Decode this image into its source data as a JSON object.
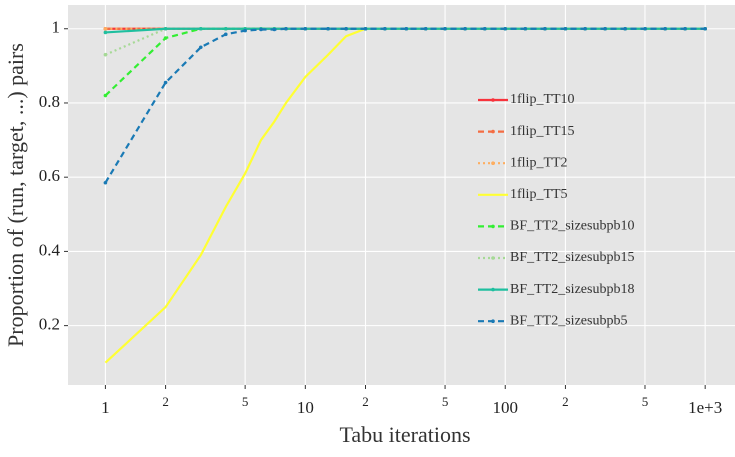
{
  "chart_data": {
    "type": "line",
    "xlabel": "Tabu iterations",
    "ylabel": "Proportion of (run, target, ...) pairs",
    "xscale": "log",
    "xlim": [
      0.65,
      1410
    ],
    "ylim": [
      0.04,
      1.064
    ],
    "xticks": [
      1,
      2,
      5,
      10,
      {
        "value": 20,
        "label": "2"
      },
      {
        "value": 50,
        "label": "5"
      },
      100,
      {
        "value": 200,
        "label": "2"
      },
      {
        "value": 500,
        "label": "5"
      },
      {
        "value": 1000,
        "label": "1e+3"
      }
    ],
    "yticks": [
      0.2,
      0.4,
      0.6,
      0.8,
      1
    ],
    "grid": true,
    "legend": "right",
    "x": [
      1,
      2,
      3,
      4,
      5,
      6,
      7,
      8,
      10,
      13,
      16,
      20,
      25,
      32,
      40,
      50,
      63,
      79,
      100,
      126,
      158,
      200,
      251,
      316,
      398,
      501,
      631,
      794,
      1000
    ],
    "series": [
      {
        "name": "1flip_TT10",
        "color": "#f8333c",
        "linestyle": "solid",
        "markers": true,
        "values": [
          1,
          1,
          1,
          1,
          1,
          1,
          1,
          1,
          1,
          1,
          1,
          1,
          1,
          1,
          1,
          1,
          1,
          1,
          1,
          1,
          1,
          1,
          1,
          1,
          1,
          1,
          1,
          1,
          1
        ]
      },
      {
        "name": "1flip_TT15",
        "color": "#f46d43",
        "linestyle": "dashed",
        "markers": true,
        "values": [
          1,
          1,
          1,
          1,
          1,
          1,
          1,
          1,
          1,
          1,
          1,
          1,
          1,
          1,
          1,
          1,
          1,
          1,
          1,
          1,
          1,
          1,
          1,
          1,
          1,
          1,
          1,
          1,
          1
        ]
      },
      {
        "name": "1flip_TT2",
        "color": "#fdae61",
        "linestyle": "dotted",
        "markers": true,
        "values": [
          1,
          1,
          1,
          1,
          1,
          1,
          1,
          1,
          1,
          1,
          1,
          1,
          1,
          1,
          1,
          1,
          1,
          1,
          1,
          1,
          1,
          1,
          1,
          1,
          1,
          1,
          1,
          1,
          1
        ]
      },
      {
        "name": "1flip_TT5",
        "color": "#ffff33",
        "linestyle": "solid",
        "markers": false,
        "values": [
          0.1,
          0.25,
          0.39,
          0.52,
          0.61,
          0.7,
          0.75,
          0.8,
          0.87,
          0.93,
          0.98,
          1,
          1,
          1,
          1,
          1,
          1,
          1,
          1,
          1,
          1,
          1,
          1,
          1,
          1,
          1,
          1,
          1,
          1
        ]
      },
      {
        "name": "BF_TT2_sizesubpb10",
        "color": "#33ee33",
        "linestyle": "dashed",
        "markers": true,
        "values": [
          0.82,
          0.975,
          1,
          1,
          1,
          1,
          1,
          1,
          1,
          1,
          1,
          1,
          1,
          1,
          1,
          1,
          1,
          1,
          1,
          1,
          1,
          1,
          1,
          1,
          1,
          1,
          1,
          1,
          1
        ]
      },
      {
        "name": "BF_TT2_sizesubpb15",
        "color": "#a6d996",
        "linestyle": "dotted",
        "markers": true,
        "values": [
          0.93,
          1,
          1,
          1,
          1,
          1,
          1,
          1,
          1,
          1,
          1,
          1,
          1,
          1,
          1,
          1,
          1,
          1,
          1,
          1,
          1,
          1,
          1,
          1,
          1,
          1,
          1,
          1,
          1
        ]
      },
      {
        "name": "BF_TT2_sizesubpb18",
        "color": "#1fbf9f",
        "linestyle": "solid",
        "markers": true,
        "values": [
          0.99,
          1,
          1,
          1,
          1,
          1,
          1,
          1,
          1,
          1,
          1,
          1,
          1,
          1,
          1,
          1,
          1,
          1,
          1,
          1,
          1,
          1,
          1,
          1,
          1,
          1,
          1,
          1,
          1
        ]
      },
      {
        "name": "BF_TT2_sizesubpb5",
        "color": "#1a7ab5",
        "linestyle": "dashed",
        "markers": true,
        "values": [
          0.585,
          0.855,
          0.95,
          0.985,
          0.995,
          0.998,
          0.998,
          1,
          1,
          1,
          1,
          1,
          1,
          1,
          1,
          1,
          1,
          1,
          1,
          1,
          1,
          1,
          1,
          1,
          1,
          1,
          1,
          1,
          1
        ]
      }
    ]
  }
}
